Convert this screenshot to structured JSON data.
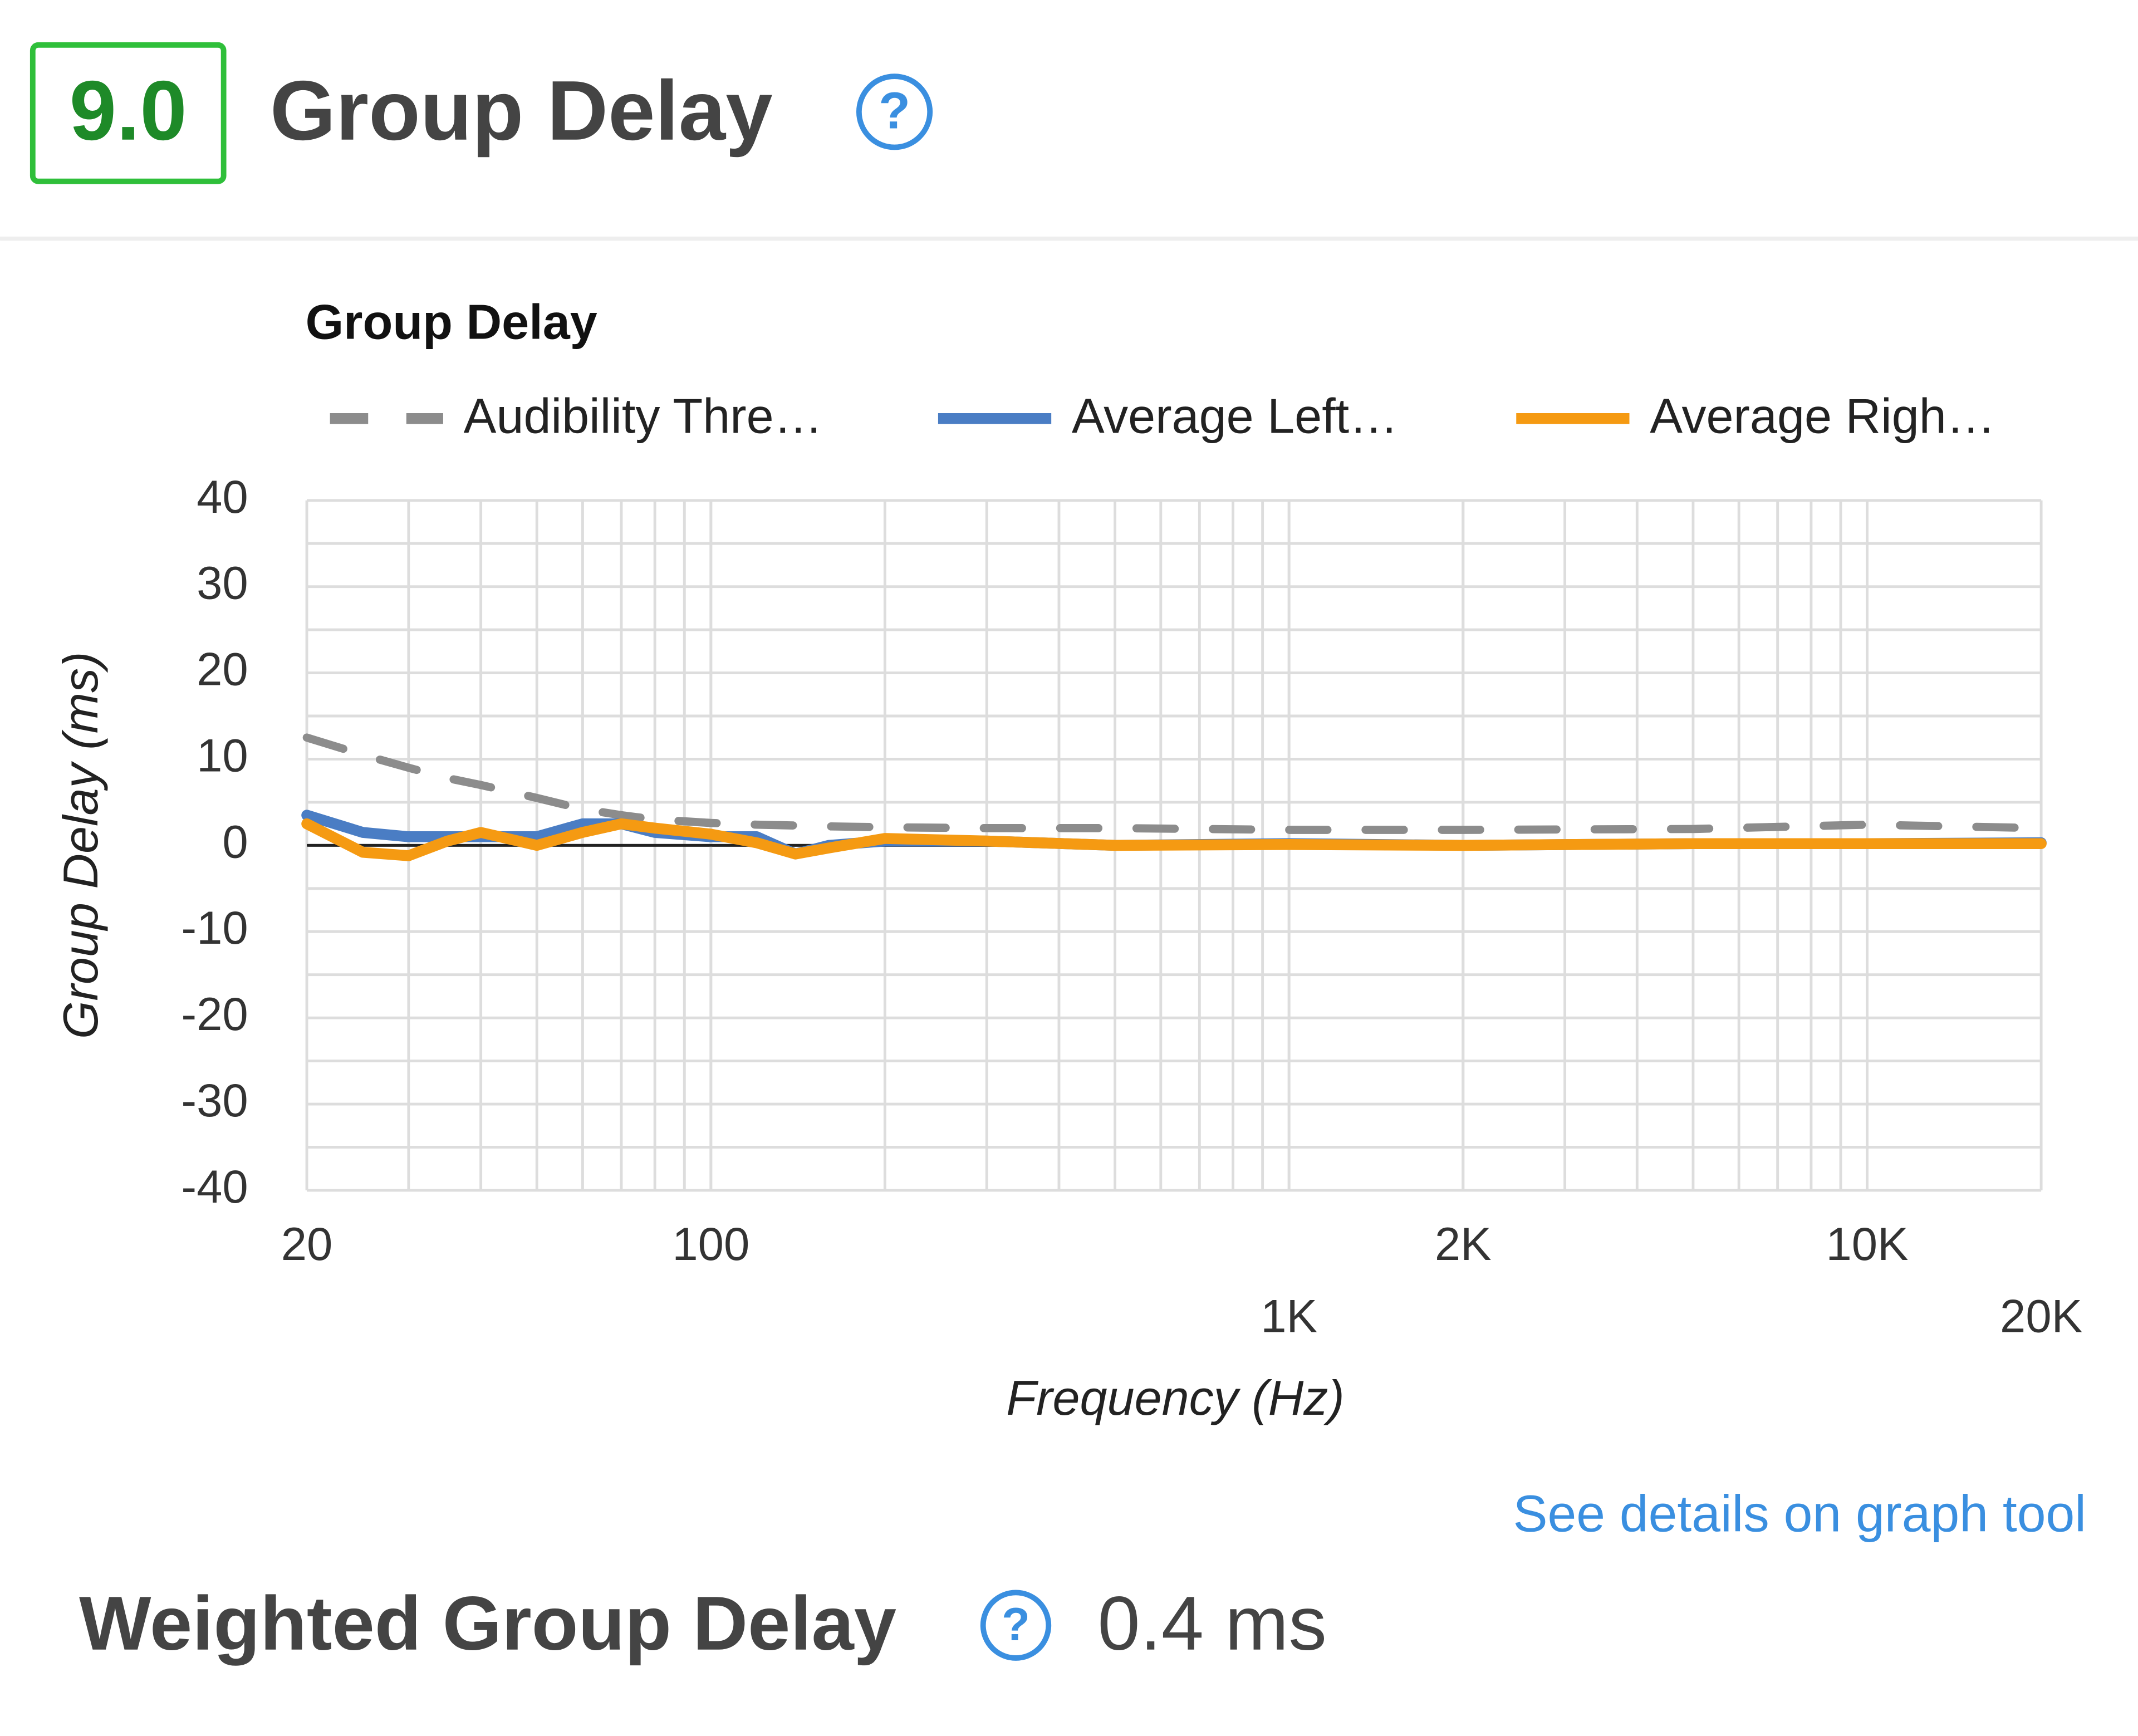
{
  "header": {
    "score": "9.0",
    "title": "Group Delay"
  },
  "chart_data": {
    "type": "line",
    "title": "Group Delay",
    "x_label": "Frequency (Hz)",
    "y_label": "Group Delay (ms)",
    "x_scale": "log",
    "grid": true,
    "minor_grid": true,
    "legend": "top",
    "x": [
      20,
      25,
      30,
      35,
      40,
      50,
      60,
      70,
      80,
      100,
      120,
      140,
      160,
      200,
      300,
      500,
      1000,
      2000,
      5000,
      10000,
      20000
    ],
    "series": [
      {
        "name": "Audibility Thre…",
        "color": "#8c8c8c",
        "dashed": true,
        "values": [
          12.5,
          10.5,
          9,
          7.8,
          7,
          5.5,
          4.2,
          3.5,
          3,
          2.6,
          2.4,
          2.3,
          2.2,
          2.1,
          2,
          2,
          1.8,
          1.8,
          1.9,
          2.4,
          2
        ]
      },
      {
        "name": "Average Left…",
        "color": "#4a7dc4",
        "values": [
          3.5,
          1.5,
          1,
          1,
          1,
          1,
          2.5,
          2.5,
          1.5,
          1,
          1,
          -1,
          0,
          0.5,
          0.5,
          0,
          0.2,
          0,
          0.2,
          0.2,
          0.3
        ]
      },
      {
        "name": "Average Righ…",
        "color": "#f59a12",
        "values": [
          2.5,
          -0.8,
          -1.2,
          0.5,
          1.5,
          0,
          1.5,
          2.5,
          2,
          1.3,
          0.3,
          -1,
          -0.3,
          0.8,
          0.5,
          0,
          0.1,
          0,
          0.2,
          0.2,
          0.2
        ]
      }
    ],
    "xlim": [
      20,
      20000
    ],
    "xticks": [
      20,
      100,
      {
        "value": 1000,
        "label": "1K"
      },
      {
        "value": 2000,
        "label": "2K"
      },
      {
        "value": 10000,
        "label": "10K"
      },
      {
        "value": 20000,
        "label": "20K"
      }
    ],
    "ylim": [
      -40,
      40
    ],
    "yticks": [
      -40,
      -30,
      -20,
      -10,
      0,
      10,
      20,
      30,
      40
    ]
  },
  "footer": {
    "link": "See details on graph tool",
    "metric": "Weighted Group Delay",
    "metric_value": "0.4 ms"
  }
}
